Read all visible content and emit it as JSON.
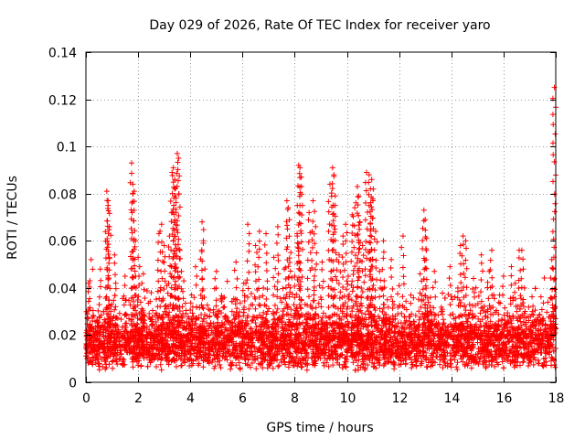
{
  "chart_data": {
    "type": "scatter",
    "title": "Day 029 of 2026, Rate Of TEC Index for receiver yaro",
    "xlabel": "GPS time / hours",
    "ylabel": "ROTI / TECUs",
    "xlim": [
      0,
      18
    ],
    "ylim": [
      0,
      0.14
    ],
    "x_ticks": [
      0,
      2,
      4,
      6,
      8,
      10,
      12,
      14,
      16,
      18
    ],
    "x_tick_labels": [
      "0",
      "2",
      "4",
      "6",
      "8",
      "10",
      "12",
      "14",
      "16",
      "18"
    ],
    "y_ticks": [
      0,
      0.02,
      0.04,
      0.06,
      0.08,
      0.1,
      0.12,
      0.14
    ],
    "y_tick_labels": [
      "0",
      "0.02",
      "0.04",
      "0.06",
      "0.08",
      "0.1",
      "0.12",
      "0.14"
    ],
    "grid": true,
    "marker": "+",
    "marker_color": "#ff0000",
    "series": [
      {
        "name": "ROTI",
        "color": "#ff0000",
        "points": [
          [
            0.05,
            0.01
          ],
          [
            0.1,
            0.031
          ],
          [
            0.1,
            0.042
          ],
          [
            0.15,
            0.018
          ],
          [
            0.2,
            0.052
          ],
          [
            0.25,
            0.026
          ],
          [
            0.35,
            0.013
          ],
          [
            0.45,
            0.022
          ],
          [
            0.55,
            0.048
          ],
          [
            0.7,
            0.015
          ],
          [
            0.8,
            0.081
          ],
          [
            0.85,
            0.077
          ],
          [
            0.85,
            0.075
          ],
          [
            0.9,
            0.066
          ],
          [
            0.95,
            0.03
          ],
          [
            1.1,
            0.054
          ],
          [
            1.2,
            0.024
          ],
          [
            1.35,
            0.012
          ],
          [
            1.5,
            0.045
          ],
          [
            1.6,
            0.019
          ],
          [
            1.75,
            0.093
          ],
          [
            1.8,
            0.084
          ],
          [
            1.85,
            0.081
          ],
          [
            1.9,
            0.06
          ],
          [
            2.0,
            0.053
          ],
          [
            2.1,
            0.034
          ],
          [
            2.2,
            0.046
          ],
          [
            2.35,
            0.016
          ],
          [
            2.5,
            0.038
          ],
          [
            2.65,
            0.022
          ],
          [
            2.8,
            0.063
          ],
          [
            2.9,
            0.067
          ],
          [
            3.0,
            0.058
          ],
          [
            3.1,
            0.041
          ],
          [
            3.2,
            0.062
          ],
          [
            3.3,
            0.089
          ],
          [
            3.35,
            0.091
          ],
          [
            3.4,
            0.082
          ],
          [
            3.4,
            0.086
          ],
          [
            3.5,
            0.097
          ],
          [
            3.55,
            0.095
          ],
          [
            3.6,
            0.056
          ],
          [
            3.75,
            0.043
          ],
          [
            3.9,
            0.02
          ],
          [
            4.05,
            0.037
          ],
          [
            4.2,
            0.049
          ],
          [
            4.35,
            0.023
          ],
          [
            4.45,
            0.068
          ],
          [
            4.5,
            0.059
          ],
          [
            4.7,
            0.031
          ],
          [
            4.85,
            0.014
          ],
          [
            5.0,
            0.047
          ],
          [
            5.15,
            0.021
          ],
          [
            5.3,
            0.036
          ],
          [
            5.45,
            0.018
          ],
          [
            5.6,
            0.03
          ],
          [
            5.75,
            0.051
          ],
          [
            5.9,
            0.025
          ],
          [
            6.05,
            0.042
          ],
          [
            6.2,
            0.067
          ],
          [
            6.35,
            0.026
          ],
          [
            6.5,
            0.058
          ],
          [
            6.65,
            0.064
          ],
          [
            6.8,
            0.04
          ],
          [
            6.9,
            0.063
          ],
          [
            7.05,
            0.019
          ],
          [
            7.2,
            0.053
          ],
          [
            7.35,
            0.066
          ],
          [
            7.5,
            0.034
          ],
          [
            7.6,
            0.048
          ],
          [
            7.7,
            0.077
          ],
          [
            7.75,
            0.074
          ],
          [
            7.85,
            0.055
          ],
          [
            8.0,
            0.045
          ],
          [
            8.1,
            0.062
          ],
          [
            8.15,
            0.092
          ],
          [
            8.2,
            0.091
          ],
          [
            8.25,
            0.087
          ],
          [
            8.4,
            0.033
          ],
          [
            8.55,
            0.072
          ],
          [
            8.7,
            0.077
          ],
          [
            8.8,
            0.066
          ],
          [
            8.95,
            0.041
          ],
          [
            9.05,
            0.051
          ],
          [
            9.2,
            0.028
          ],
          [
            9.35,
            0.084
          ],
          [
            9.45,
            0.091
          ],
          [
            9.5,
            0.088
          ],
          [
            9.55,
            0.075
          ],
          [
            9.7,
            0.054
          ],
          [
            9.85,
            0.062
          ],
          [
            9.95,
            0.067
          ],
          [
            10.05,
            0.045
          ],
          [
            10.2,
            0.071
          ],
          [
            10.3,
            0.074
          ],
          [
            10.4,
            0.083
          ],
          [
            10.45,
            0.079
          ],
          [
            10.5,
            0.068
          ],
          [
            10.6,
            0.058
          ],
          [
            10.75,
            0.089
          ],
          [
            10.85,
            0.088
          ],
          [
            10.9,
            0.082
          ],
          [
            10.95,
            0.086
          ],
          [
            11.0,
            0.077
          ],
          [
            11.1,
            0.064
          ],
          [
            11.25,
            0.047
          ],
          [
            11.4,
            0.06
          ],
          [
            11.55,
            0.035
          ],
          [
            11.7,
            0.052
          ],
          [
            11.85,
            0.028
          ],
          [
            12.0,
            0.041
          ],
          [
            12.15,
            0.062
          ],
          [
            12.3,
            0.019
          ],
          [
            12.45,
            0.037
          ],
          [
            12.6,
            0.024
          ],
          [
            12.8,
            0.046
          ],
          [
            12.95,
            0.073
          ],
          [
            13.0,
            0.069
          ],
          [
            13.05,
            0.061
          ],
          [
            13.2,
            0.036
          ],
          [
            13.35,
            0.047
          ],
          [
            13.5,
            0.015
          ],
          [
            13.65,
            0.031
          ],
          [
            13.8,
            0.022
          ],
          [
            13.95,
            0.049
          ],
          [
            14.1,
            0.027
          ],
          [
            14.25,
            0.04
          ],
          [
            14.35,
            0.058
          ],
          [
            14.45,
            0.062
          ],
          [
            14.55,
            0.06
          ],
          [
            14.7,
            0.033
          ],
          [
            14.85,
            0.044
          ],
          [
            15.0,
            0.019
          ],
          [
            15.15,
            0.054
          ],
          [
            15.3,
            0.028
          ],
          [
            15.45,
            0.047
          ],
          [
            15.55,
            0.056
          ],
          [
            15.7,
            0.024
          ],
          [
            15.85,
            0.037
          ],
          [
            16.0,
            0.045
          ],
          [
            16.15,
            0.02
          ],
          [
            16.3,
            0.049
          ],
          [
            16.45,
            0.042
          ],
          [
            16.6,
            0.056
          ],
          [
            16.7,
            0.056
          ],
          [
            16.8,
            0.04
          ],
          [
            16.95,
            0.011
          ],
          [
            17.1,
            0.03
          ],
          [
            17.25,
            0.018
          ],
          [
            17.4,
            0.025
          ],
          [
            17.55,
            0.022
          ],
          [
            17.7,
            0.034
          ],
          [
            17.85,
            0.052
          ],
          [
            17.9,
            0.048
          ],
          [
            17.95,
            0.125
          ]
        ]
      }
    ],
    "dense_band": {
      "description": "baseline cloud of ROTI samples",
      "y_range": [
        0.005,
        0.03
      ],
      "x_range": [
        0,
        18
      ],
      "sample_count": 4200
    }
  }
}
